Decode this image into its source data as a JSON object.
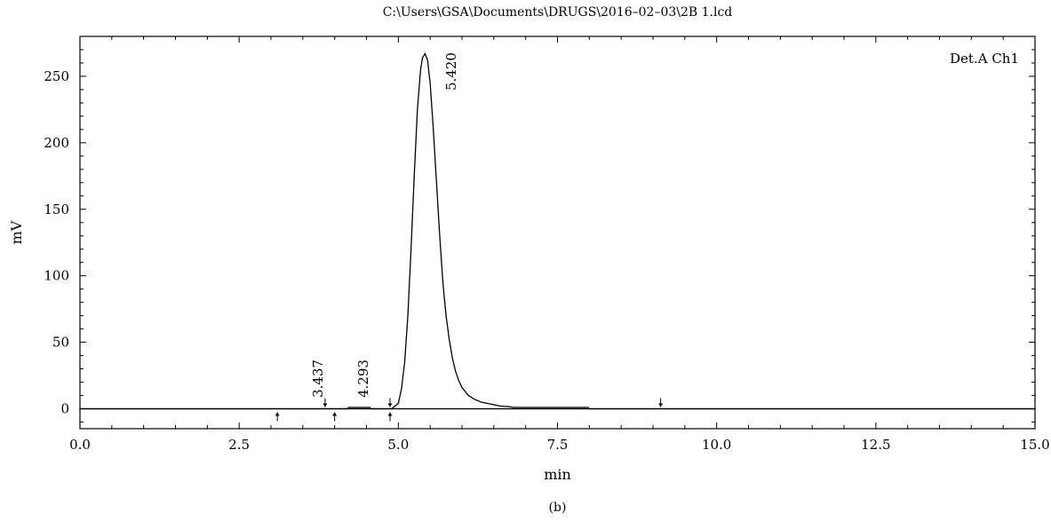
{
  "chart_data": {
    "type": "line",
    "title": "C:\\Users\\GSA\\Documents\\DRUGS\\2016–02–03\\2B 1.lcd",
    "xlabel": "min",
    "ylabel": "mV",
    "xlim": [
      0,
      15
    ],
    "ylim": [
      -15,
      280
    ],
    "x_ticks": [
      0.0,
      2.5,
      5.0,
      7.5,
      10.0,
      12.5,
      15.0
    ],
    "x_tick_labels": [
      "0.0",
      "2.5",
      "5.0",
      "7.5",
      "10.0",
      "12.5",
      "15.0"
    ],
    "y_ticks": [
      0,
      50,
      100,
      150,
      200,
      250
    ],
    "y_tick_labels": [
      "0",
      "50",
      "100",
      "150",
      "200",
      "250"
    ],
    "legend": {
      "label": "Det.A Ch1",
      "position": "top-right"
    },
    "grid": false,
    "series": [
      {
        "name": "Det.A Ch1",
        "x": [
          0.0,
          3.0,
          4.2,
          4.22,
          4.55,
          4.57,
          4.9,
          5.0,
          5.05,
          5.1,
          5.15,
          5.2,
          5.25,
          5.3,
          5.35,
          5.38,
          5.42,
          5.46,
          5.5,
          5.55,
          5.6,
          5.65,
          5.7,
          5.75,
          5.8,
          5.85,
          5.9,
          5.95,
          6.0,
          6.1,
          6.2,
          6.3,
          6.4,
          6.5,
          6.6,
          6.75,
          6.8,
          7.98,
          8.0,
          15.0
        ],
        "y": [
          0,
          0,
          0,
          1,
          1,
          0,
          0,
          4,
          15,
          35,
          70,
          120,
          175,
          225,
          255,
          264,
          267,
          262,
          245,
          210,
          170,
          130,
          95,
          70,
          52,
          38,
          28,
          21,
          16,
          10,
          7,
          5,
          4,
          3,
          2,
          1.5,
          1,
          1,
          0,
          0
        ]
      }
    ],
    "peak_labels": [
      {
        "label": "3.437",
        "x": 3.437
      },
      {
        "label": "4.293",
        "x": 4.293
      },
      {
        "label": "5.420",
        "x": 5.42
      }
    ],
    "integration_markers": [
      {
        "x": 3.1,
        "direction": "up"
      },
      {
        "x": 3.85,
        "direction": "down"
      },
      {
        "x": 4.0,
        "direction": "up"
      },
      {
        "x": 4.87,
        "direction": "up"
      },
      {
        "x": 4.87,
        "direction": "down"
      },
      {
        "x": 9.12,
        "direction": "down"
      }
    ],
    "panel_label": "(b)"
  }
}
